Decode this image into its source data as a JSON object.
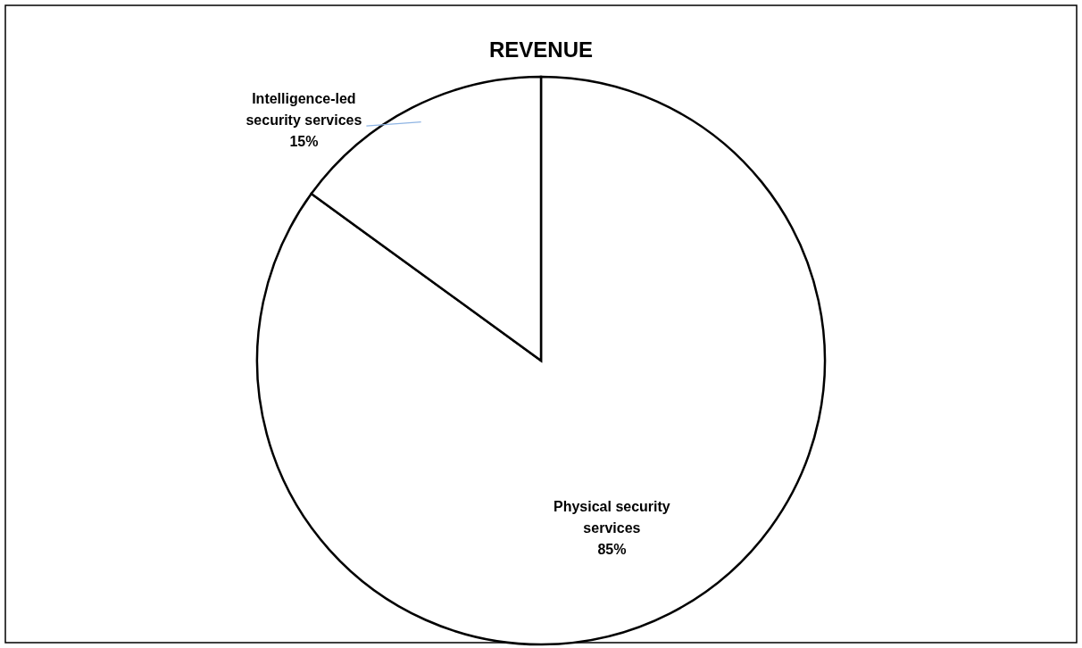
{
  "chart_data": {
    "type": "pie",
    "title": "REVENUE",
    "categories": [
      "Physical security services",
      "Intelligence-led security services"
    ],
    "values": [
      85,
      15
    ],
    "colors": [
      "#ffffff",
      "#ffffff"
    ],
    "value_labels": [
      "85%",
      "15%"
    ],
    "legend": false
  }
}
